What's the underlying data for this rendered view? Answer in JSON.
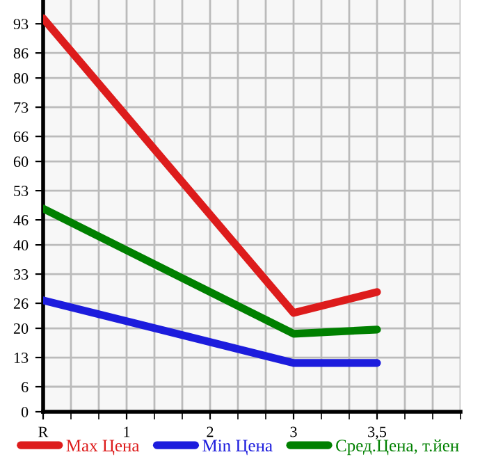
{
  "chart_data": {
    "type": "line",
    "categories": [
      "R",
      "1",
      "2",
      "3",
      "3,5"
    ],
    "series": [
      {
        "name": "Max Цена",
        "color": "#dd1c1c",
        "values": [
          94.3,
          null,
          null,
          23.7,
          28.7
        ]
      },
      {
        "name": "Min Цена",
        "color": "#1c1cdd",
        "values": [
          26.7,
          null,
          null,
          11.7,
          11.7
        ]
      },
      {
        "name": "Сред.Цена, т.йен",
        "color": "#008000",
        "values": [
          48.7,
          null,
          null,
          18.7,
          19.7
        ]
      }
    ],
    "ylim": [
      0,
      98.7
    ],
    "yticks": [
      0,
      6,
      13,
      20,
      26,
      33,
      40,
      46,
      53,
      60,
      66,
      73,
      80,
      86,
      93
    ],
    "grid": true,
    "legend": "bottom",
    "marker": "none",
    "line_style": "solid"
  }
}
